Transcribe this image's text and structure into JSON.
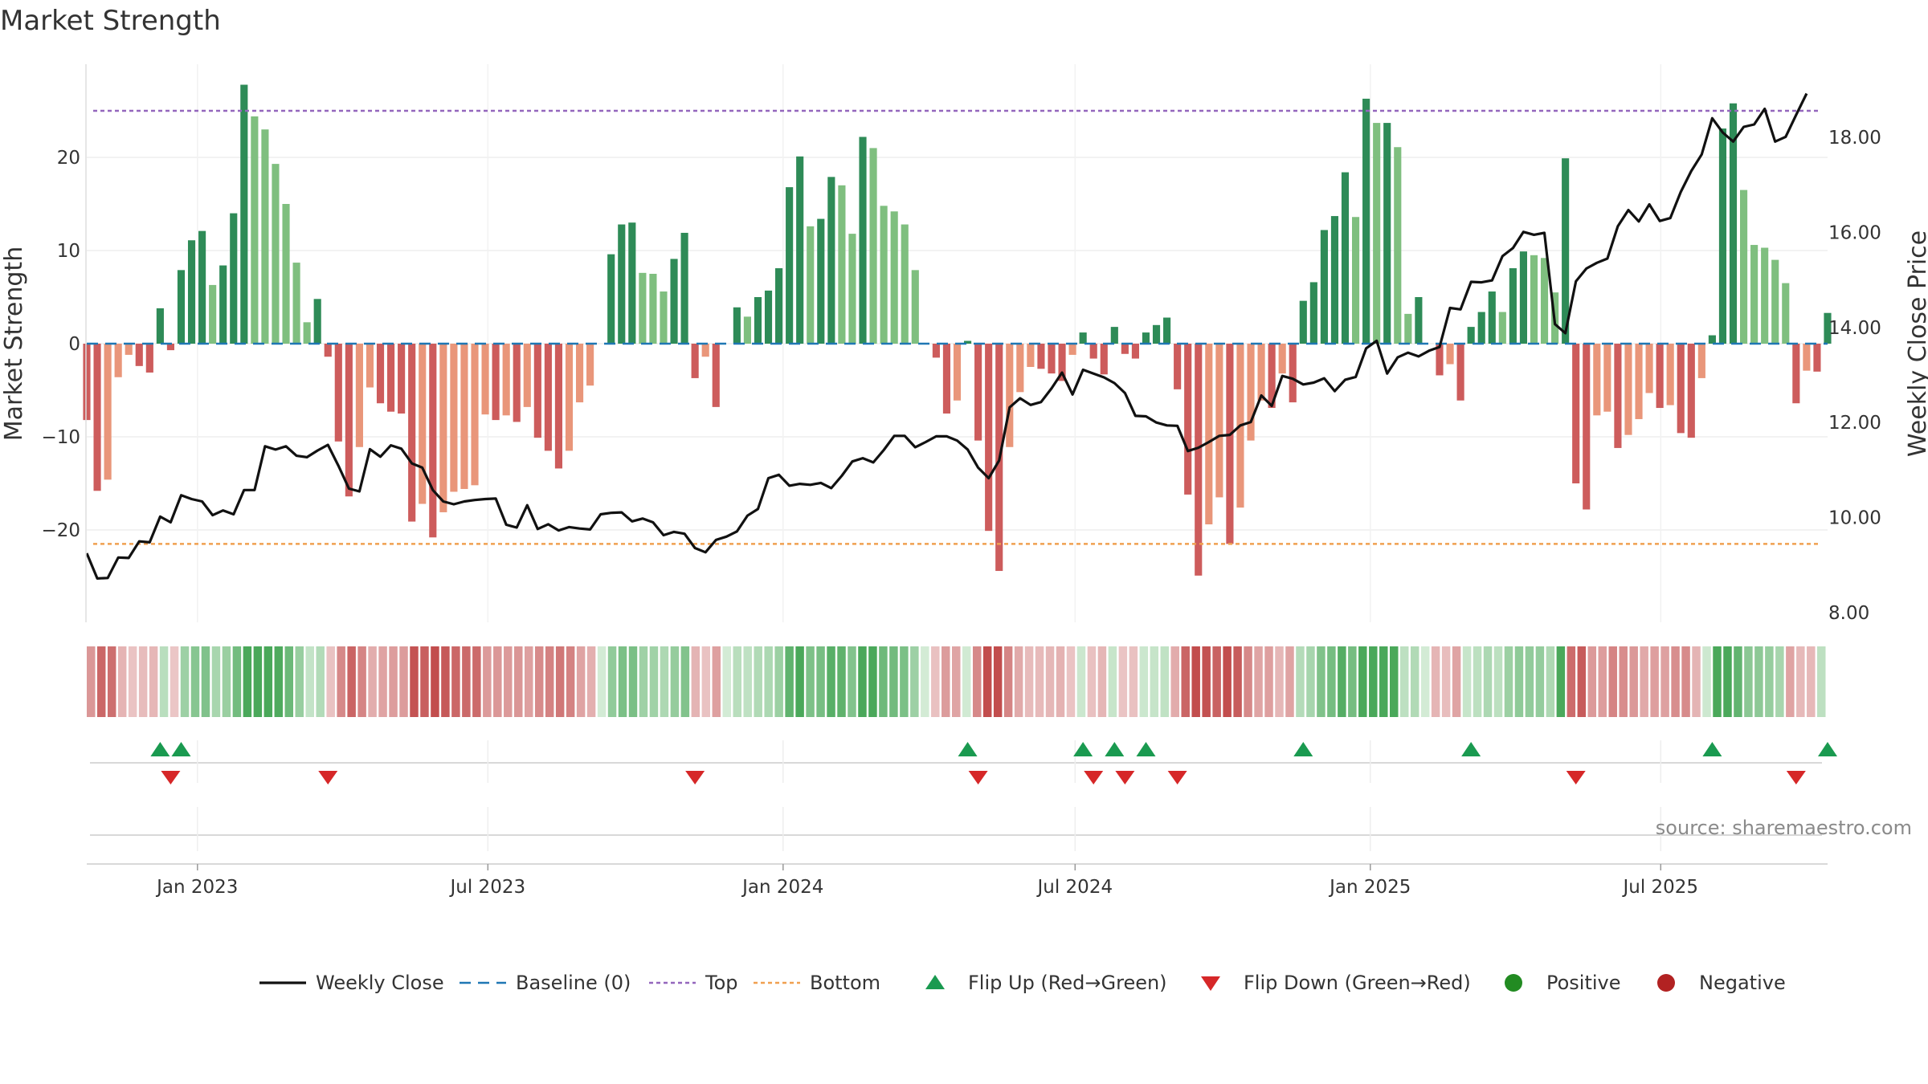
{
  "title": "Market Strength",
  "source": "source: sharemaestro.com",
  "chart_data": {
    "type": "bar",
    "title": "Market Strength",
    "ylabel_left": "Market Strength",
    "ylabel_right": "Weekly Close Price",
    "ylim_left": [
      -30,
      30
    ],
    "ylim_right": [
      7.5,
      19.5
    ],
    "yticks_left": [
      -20,
      -10,
      0,
      10,
      20
    ],
    "yticks_right": [
      8.0,
      10.0,
      12.0,
      14.0,
      16.0,
      18.0
    ],
    "yticks_right_labels": [
      "8.00",
      "10.00",
      "12.00",
      "14.00",
      "16.00",
      "18.00"
    ],
    "top_threshold": 25,
    "bottom_threshold": -21.5,
    "x_start": "2022-10-24",
    "x_end": "2025-10-13",
    "xticks": [
      "2023-01-01",
      "2023-07-01",
      "2024-01-01",
      "2024-07-01",
      "2025-01-01",
      "2025-07-01"
    ],
    "xtick_labels": [
      "Jan 2023",
      "Jul 2023",
      "Jan 2024",
      "Jul 2024",
      "Jan 2025",
      "Jul 2025"
    ],
    "strength": [
      -8.2,
      -15.8,
      -14.6,
      -3.6,
      -1.2,
      -2.4,
      -3.1,
      3.8,
      -0.7,
      7.9,
      11.1,
      12.1,
      6.3,
      8.4,
      14,
      27.8,
      24.4,
      23,
      19.3,
      15,
      8.7,
      2.3,
      4.8,
      -1.4,
      -10.5,
      -16.4,
      -11.1,
      -4.7,
      -6.4,
      -7.3,
      -7.5,
      -19.1,
      -17.2,
      -20.8,
      -18.1,
      -15.9,
      -15.6,
      -15.2,
      -7.6,
      -8.2,
      -7.7,
      -8.4,
      -6.8,
      -10.1,
      -11.5,
      -13.4,
      -11.5,
      -6.3,
      -4.5,
      0,
      9.6,
      12.8,
      13,
      7.6,
      7.5,
      5.6,
      9.1,
      11.9,
      -3.7,
      -1.4,
      -6.8,
      0,
      3.9,
      2.9,
      5,
      5.7,
      8.1,
      16.8,
      20.1,
      12.6,
      13.4,
      17.9,
      17,
      11.8,
      22.2,
      21,
      14.8,
      14.2,
      12.8,
      7.9,
      0,
      -1.5,
      -7.5,
      -6.1,
      0.3,
      -10.4,
      -20.1,
      -24.4,
      -11.1,
      -5.2,
      -2.5,
      -2.7,
      -3.2,
      -4,
      -1.2,
      1.2,
      -1.6,
      -3.3,
      1.8,
      -1.1,
      -1.6,
      1.2,
      2,
      2.8,
      -4.9,
      -16.2,
      -24.9,
      -19.4,
      -16.5,
      -21.5,
      -17.6,
      -10.4,
      -6.1,
      -6.9,
      -3.2,
      -6.3,
      4.6,
      6.6,
      12.2,
      13.7,
      18.4,
      13.6,
      26.3,
      23.7,
      23.7,
      21.1,
      3.2,
      5,
      0,
      -3.4,
      -2.2,
      -6.1,
      1.8,
      3.4,
      5.6,
      3.4,
      8.1,
      9.9,
      9.5,
      9.2,
      5.5,
      19.9,
      -15,
      -17.8,
      -7.7,
      -7.3,
      -11.2,
      -9.8,
      -8.1,
      -5.3,
      -6.9,
      -6.6,
      -9.6,
      -10.1,
      -3.7,
      0.9,
      23.1,
      25.8,
      16.5,
      10.6,
      10.3,
      9,
      6.5,
      -6.4,
      -2.9,
      -3,
      3.3
    ],
    "weekly_close": [
      9.25,
      8.72,
      8.73,
      9.16,
      9.15,
      9.5,
      9.48,
      10.02,
      9.9,
      10.47,
      10.39,
      10.34,
      10.05,
      10.15,
      10.07,
      10.58,
      10.58,
      11.5,
      11.43,
      11.5,
      11.3,
      11.27,
      11.41,
      11.53,
      11.09,
      10.61,
      10.55,
      11.44,
      11.28,
      11.52,
      11.45,
      11.14,
      11.05,
      10.58,
      10.34,
      10.28,
      10.34,
      10.37,
      10.39,
      10.4,
      9.85,
      9.79,
      10.26,
      9.76,
      9.86,
      9.73,
      9.8,
      9.77,
      9.75,
      10.07,
      10.1,
      10.11,
      9.92,
      9.98,
      9.9,
      9.63,
      9.7,
      9.66,
      9.36,
      9.27,
      9.53,
      9.6,
      9.71,
      10.04,
      10.18,
      10.83,
      10.9,
      10.67,
      10.71,
      10.69,
      10.73,
      10.62,
      10.88,
      11.18,
      11.25,
      11.16,
      11.42,
      11.72,
      11.72,
      11.48,
      11.59,
      11.71,
      11.71,
      11.62,
      11.43,
      11.05,
      10.83,
      11.2,
      12.32,
      12.51,
      12.37,
      12.43,
      12.72,
      13.05,
      12.59,
      13.11,
      13.03,
      12.95,
      12.83,
      12.62,
      12.14,
      12.13,
      12.0,
      11.94,
      11.93,
      11.4,
      11.47,
      11.59,
      11.72,
      11.74,
      11.94,
      12.01,
      12.57,
      12.35,
      12.98,
      12.92,
      12.8,
      12.84,
      12.93,
      12.66,
      12.9,
      12.96,
      13.56,
      13.72,
      13.03,
      13.37,
      13.47,
      13.39,
      13.51,
      13.59,
      14.41,
      14.38,
      14.96,
      14.95,
      14.99,
      15.5,
      15.67,
      16.01,
      15.95,
      15.99,
      14.07,
      13.88,
      14.97,
      15.24,
      15.36,
      15.45,
      16.13,
      16.47,
      16.23,
      16.59,
      16.24,
      16.3,
      16.85,
      17.29,
      17.64,
      18.4,
      18.1,
      17.91,
      18.22,
      18.27,
      18.6,
      17.91,
      18.01,
      18.47,
      18.92
    ]
  },
  "legend": [
    {
      "label": "Weekly Close",
      "kind": "line",
      "color": "#111111"
    },
    {
      "label": "Baseline (0)",
      "kind": "dash",
      "color": "#1f77b4"
    },
    {
      "label": "Top",
      "kind": "dotted",
      "color": "#9467bd"
    },
    {
      "label": "Bottom",
      "kind": "dotted",
      "color": "#f0a050"
    },
    {
      "label": "Flip Up (Red→Green)",
      "kind": "tri-up",
      "color": "#1a9a50"
    },
    {
      "label": "Flip Down (Green→Red)",
      "kind": "tri-down",
      "color": "#d62728"
    },
    {
      "label": "Positive",
      "kind": "dot",
      "color": "#228b22"
    },
    {
      "label": "Negative",
      "kind": "dot",
      "color": "#b22222"
    }
  ],
  "colors": {
    "pos_strong": "#2e8b57",
    "pos_weak": "#7fbf7f",
    "neg_strong": "#cd5c5c",
    "neg_weak": "#e9967a",
    "close_line": "#111111",
    "top_line": "#9467bd",
    "bottom_line": "#f0a050",
    "baseline": "#1f77b4",
    "flip_up": "#1a9a50",
    "flip_down": "#d62728"
  }
}
